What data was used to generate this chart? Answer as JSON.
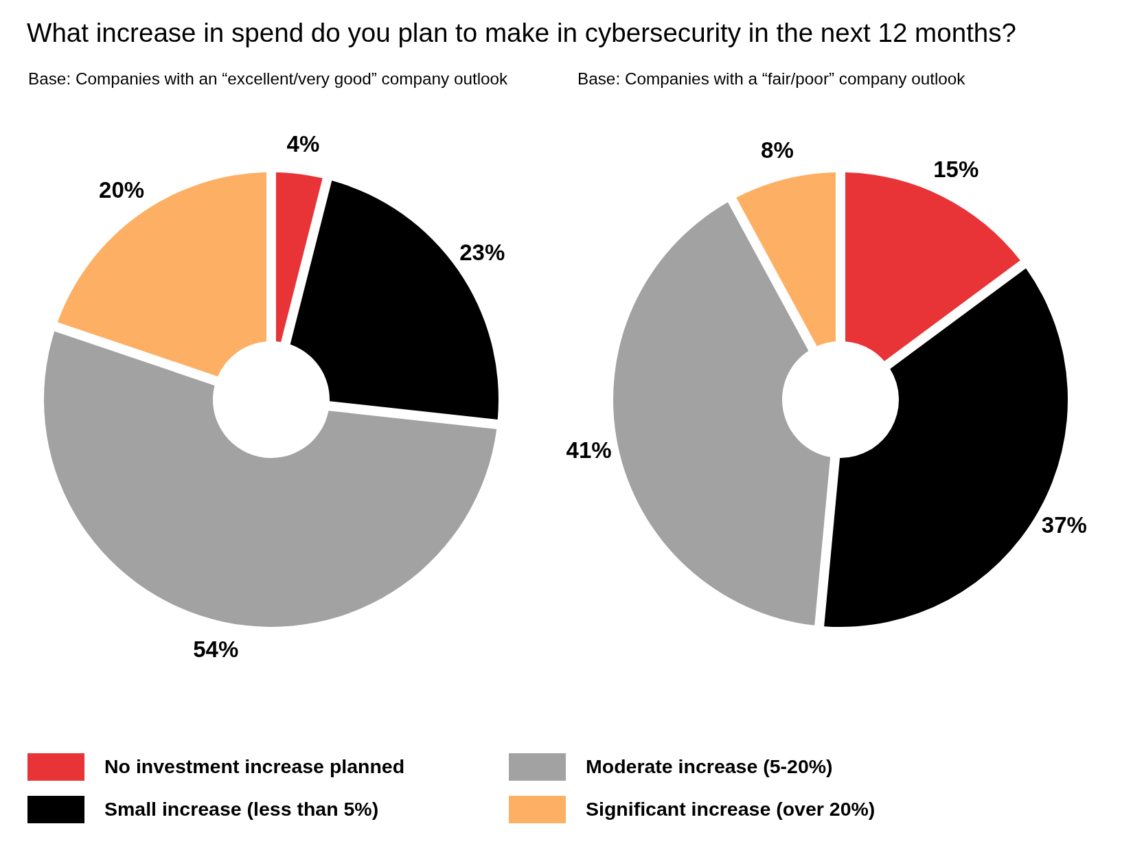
{
  "chart_data": [
    {
      "type": "donut",
      "title": "What increase in spend do you plan to make in cybersecurity in the next 12 months?",
      "subtitle": "Base: Companies with an “excellent/very good” company outlook",
      "categories": [
        "No investment increase planned",
        "Small increase (less than 5%)",
        "Moderate increase (5-20%)",
        "Significant increase (over 20%)"
      ],
      "values": [
        4,
        23,
        54,
        20
      ],
      "value_labels": [
        "4%",
        "23%",
        "54%",
        "20%"
      ],
      "colors": [
        "#e83337",
        "#000000",
        "#a2a2a2",
        "#fdb064"
      ],
      "legend": "bottom"
    },
    {
      "type": "donut",
      "subtitle": "Base: Companies with a “fair/poor” company outlook",
      "categories": [
        null,
        null,
        null,
        null
      ],
      "values": [
        15,
        37,
        41,
        8
      ],
      "value_labels": [
        "15%",
        "37%",
        "41%",
        "8%"
      ],
      "colors": [
        "#e83337",
        "#000000",
        "#a2a2a2",
        "#fdb064"
      ]
    }
  ]
}
